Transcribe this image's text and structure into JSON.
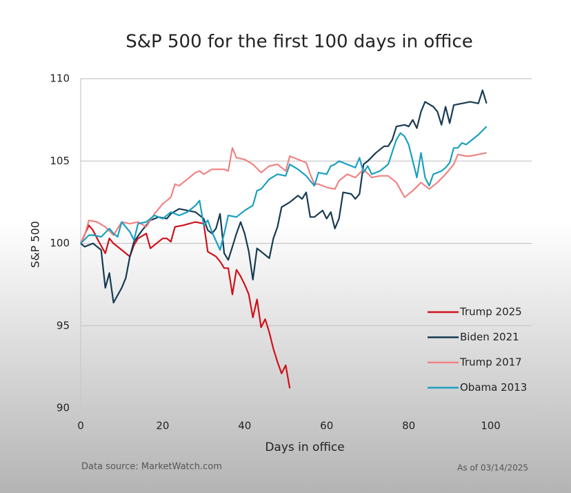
{
  "chart_data": {
    "type": "line",
    "title": "S&P 500 for the first 100 days in office",
    "xlabel": "Days in office",
    "ylabel": "S&P 500",
    "source": "Data source: MarketWatch.com",
    "note": "As of 03/14/2025",
    "xlim": [
      0,
      110
    ],
    "xticks": [
      0,
      20,
      40,
      60,
      80,
      100
    ],
    "ylim": [
      90,
      110
    ],
    "yticks": [
      90,
      95,
      100,
      105,
      110
    ],
    "grid": true,
    "legend": "lower right",
    "series": [
      {
        "name": "Trump 2025",
        "color": "#d0101a",
        "x": [
          0,
          2,
          3,
          4,
          6,
          7,
          8,
          10,
          12,
          13,
          14,
          16,
          17,
          18,
          20,
          21,
          22,
          23,
          25,
          28,
          30,
          31,
          33,
          34,
          35,
          36,
          37,
          38,
          39,
          40,
          41,
          42,
          43,
          44,
          45,
          46,
          47,
          48,
          49,
          50,
          51
        ],
        "values": [
          100,
          101.1,
          100.8,
          100.3,
          99.4,
          100.3,
          100.0,
          99.6,
          99.2,
          99.9,
          100.3,
          100.6,
          99.7,
          99.9,
          100.3,
          100.3,
          100.1,
          101.0,
          101.1,
          101.3,
          101.2,
          99.5,
          99.2,
          98.9,
          98.5,
          98.5,
          96.9,
          98.4,
          98.0,
          97.5,
          96.9,
          95.5,
          96.6,
          94.9,
          95.4,
          94.6,
          93.6,
          92.8,
          92.1,
          92.6,
          91.2
        ]
      },
      {
        "name": "Biden 2021",
        "color": "#173a52",
        "x": [
          0,
          1,
          3,
          5,
          6,
          7,
          8,
          10,
          11,
          12,
          13,
          15,
          17,
          19,
          21,
          22,
          24,
          26,
          28,
          30,
          31,
          32,
          33,
          34,
          35,
          36,
          37,
          38,
          39,
          40,
          41,
          42,
          43,
          44,
          46,
          47,
          48,
          49,
          51,
          53,
          54,
          55,
          56,
          57,
          59,
          60,
          61,
          62,
          63,
          64,
          66,
          67,
          68,
          69,
          70,
          72,
          74,
          75,
          76,
          77,
          79,
          80,
          81,
          82,
          83,
          84,
          86,
          87,
          88,
          89,
          90,
          91,
          93,
          95,
          97,
          98,
          99
        ],
        "values": [
          100,
          99.8,
          100,
          99.6,
          97.3,
          98.2,
          96.4,
          97.3,
          97.9,
          99.2,
          100.1,
          100.8,
          101.4,
          101.6,
          101.5,
          101.8,
          102.1,
          102.0,
          101.9,
          101.5,
          100.8,
          100.6,
          100.9,
          101.8,
          99.4,
          99.0,
          99.8,
          100.6,
          101.3,
          100.6,
          99.5,
          97.8,
          99.7,
          99.5,
          99.1,
          100.3,
          101.0,
          102.2,
          102.5,
          102.9,
          102.7,
          103.1,
          101.6,
          101.6,
          102.0,
          101.5,
          101.9,
          100.9,
          101.5,
          103.1,
          103.0,
          102.7,
          103.0,
          104.8,
          105.0,
          105.5,
          105.9,
          105.9,
          106.3,
          107.1,
          107.2,
          107.1,
          107.5,
          107.0,
          108.0,
          108.6,
          108.3,
          108.0,
          107.2,
          108.3,
          107.3,
          108.4,
          108.5,
          108.6,
          108.5,
          109.3,
          108.5
        ]
      },
      {
        "name": "Trump 2017",
        "color": "#f08282",
        "x": [
          0,
          1,
          2,
          4,
          6,
          8,
          10,
          12,
          14,
          16,
          18,
          20,
          22,
          23,
          24,
          26,
          28,
          29,
          30,
          32,
          34,
          35,
          36,
          37,
          38,
          40,
          42,
          44,
          45,
          46,
          48,
          49,
          50,
          51,
          53,
          55,
          56,
          57,
          58,
          60,
          62,
          63,
          65,
          67,
          69,
          71,
          73,
          75,
          77,
          79,
          81,
          83,
          85,
          87,
          89,
          91,
          92,
          94,
          95,
          97,
          99
        ],
        "values": [
          100,
          100.5,
          101.4,
          101.3,
          101,
          100.5,
          101.3,
          101.2,
          101.3,
          101.0,
          101.8,
          102.4,
          102.8,
          103.6,
          103.5,
          103.9,
          104.3,
          104.4,
          104.2,
          104.5,
          104.5,
          104.5,
          104.4,
          105.8,
          105.2,
          105.1,
          104.8,
          104.3,
          104.5,
          104.7,
          104.8,
          104.6,
          104.4,
          105.3,
          105.1,
          104.9,
          104.2,
          103.6,
          103.6,
          103.4,
          103.3,
          103.8,
          104.2,
          104.0,
          104.5,
          104.0,
          104.1,
          104.1,
          103.7,
          102.8,
          103.2,
          103.7,
          103.3,
          103.7,
          104.2,
          104.8,
          105.4,
          105.3,
          105.3,
          105.4,
          105.5
        ]
      },
      {
        "name": "Obama 2013",
        "color": "#1a9fc0",
        "x": [
          0,
          2,
          3,
          5,
          7,
          8,
          9,
          10,
          12,
          13,
          14,
          16,
          18,
          20,
          22,
          24,
          26,
          28,
          29,
          30,
          31,
          32,
          34,
          35,
          36,
          38,
          40,
          42,
          43,
          44,
          46,
          48,
          50,
          51,
          53,
          55,
          56,
          57,
          58,
          60,
          61,
          62,
          63,
          65,
          66,
          67,
          68,
          69,
          70,
          71,
          73,
          75,
          77,
          78,
          79,
          80,
          81,
          82,
          83,
          84,
          85,
          86,
          88,
          89,
          90,
          91,
          92,
          93,
          94,
          95,
          97,
          99
        ],
        "values": [
          100,
          100.5,
          100.5,
          100.4,
          100.9,
          100.6,
          100.4,
          101.3,
          100.7,
          100.2,
          101.2,
          101.3,
          101.7,
          101.5,
          101.9,
          101.7,
          101.9,
          102.3,
          102.6,
          101.1,
          101.4,
          100.7,
          99.6,
          100.6,
          101.7,
          101.6,
          102.0,
          102.3,
          103.2,
          103.3,
          103.9,
          104.2,
          104.1,
          104.8,
          104.5,
          104.1,
          103.8,
          103.5,
          104.3,
          104.2,
          104.7,
          104.8,
          105.0,
          104.8,
          104.7,
          104.6,
          105.2,
          104.3,
          104.7,
          104.2,
          104.4,
          104.8,
          106.3,
          106.7,
          106.5,
          106.0,
          105.0,
          104.0,
          105.5,
          104.0,
          103.5,
          104.2,
          104.4,
          104.6,
          104.9,
          105.8,
          105.8,
          106.1,
          106.0,
          106.2,
          106.6,
          107.1
        ]
      }
    ]
  }
}
